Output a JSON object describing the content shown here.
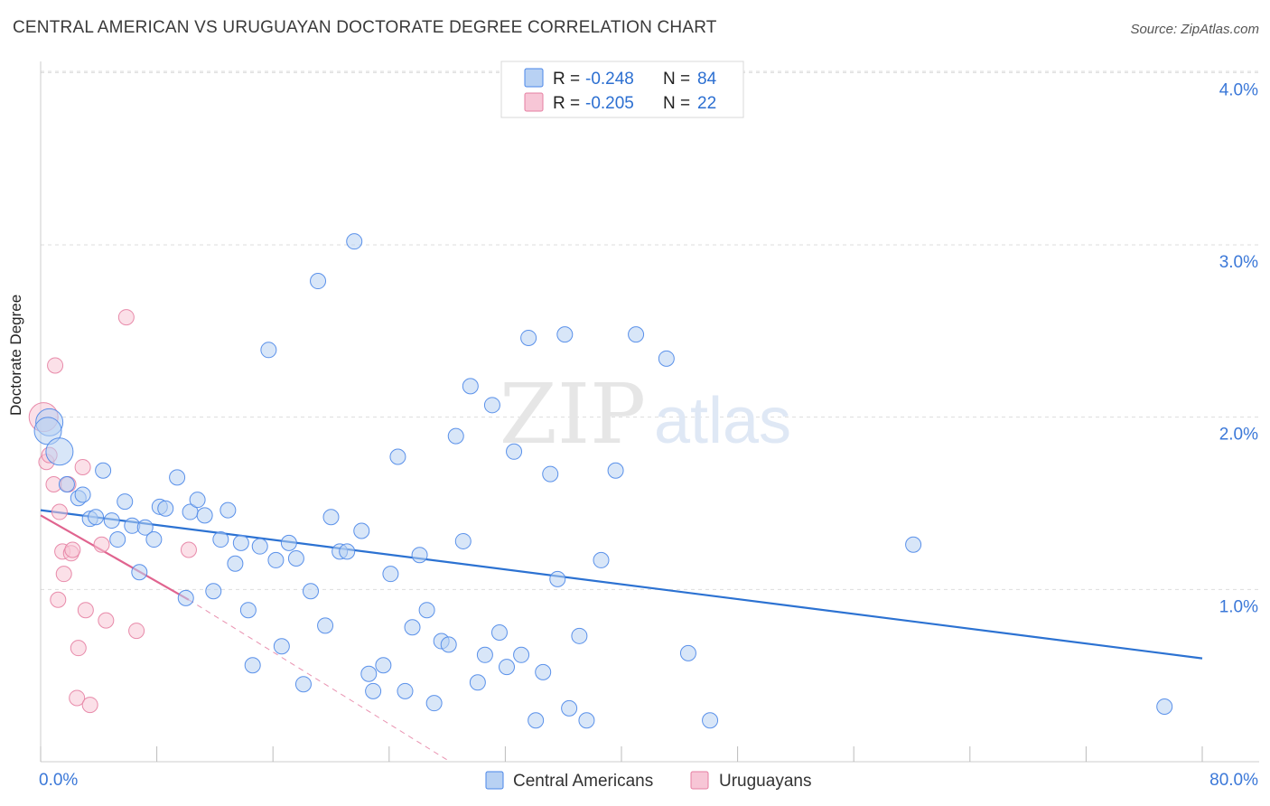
{
  "title": "CENTRAL AMERICAN VS URUGUAYAN DOCTORATE DEGREE CORRELATION CHART",
  "source": "Source: ZipAtlas.com",
  "watermark": {
    "zip": "ZIP",
    "atlas": "atlas"
  },
  "colors": {
    "blue": "#4a86e8",
    "blue_fill": "#b8d1f3",
    "blue_line": "#2c72d2",
    "pink": "#e67fa2",
    "pink_fill": "#f7c6d6",
    "pink_line": "#e0648f",
    "axis_text": "#3b78d8",
    "grid": "#dddddd"
  },
  "legend": {
    "rows": [
      {
        "r_label": "R = ",
        "r_value": "-0.248",
        "n_label": "N = ",
        "n_value": "84"
      },
      {
        "r_label": "R = ",
        "r_value": "-0.205",
        "n_label": "N = ",
        "n_value": "22"
      }
    ]
  },
  "chart_data": {
    "type": "scatter",
    "title": "CENTRAL AMERICAN VS URUGUAYAN DOCTORATE DEGREE CORRELATION CHART",
    "xlabel": "",
    "ylabel": "Doctorate Degree",
    "xlim": [
      0,
      80
    ],
    "ylim": [
      0,
      4.2
    ],
    "x_tick_labels": [
      "0.0%",
      "80.0%"
    ],
    "y_ticks": [
      {
        "value": 1.0,
        "label": "1.0%"
      },
      {
        "value": 2.0,
        "label": "2.0%"
      },
      {
        "value": 3.0,
        "label": "3.0%"
      },
      {
        "value": 4.0,
        "label": "4.0%"
      }
    ],
    "series": [
      {
        "name": "Central Americans",
        "r": -0.248,
        "n": 84,
        "trend": {
          "x": [
            0,
            80
          ],
          "y": [
            1.46,
            0.6
          ],
          "dashed_extension": false
        },
        "points": [
          [
            0.6,
            1.97,
            "l"
          ],
          [
            0.5,
            1.92,
            "l"
          ],
          [
            1.3,
            1.8,
            "l"
          ],
          [
            1.8,
            1.61
          ],
          [
            2.6,
            1.53
          ],
          [
            2.9,
            1.55
          ],
          [
            3.4,
            1.41
          ],
          [
            3.8,
            1.42
          ],
          [
            4.3,
            1.69
          ],
          [
            4.9,
            1.4
          ],
          [
            5.3,
            1.29
          ],
          [
            5.8,
            1.51
          ],
          [
            6.3,
            1.37
          ],
          [
            6.8,
            1.1
          ],
          [
            7.2,
            1.36
          ],
          [
            7.8,
            1.29
          ],
          [
            8.2,
            1.48
          ],
          [
            8.6,
            1.47
          ],
          [
            9.4,
            1.65
          ],
          [
            10.0,
            0.95
          ],
          [
            10.3,
            1.45
          ],
          [
            10.8,
            1.52
          ],
          [
            11.3,
            1.43
          ],
          [
            11.9,
            0.99
          ],
          [
            12.4,
            1.29
          ],
          [
            12.9,
            1.46
          ],
          [
            13.4,
            1.15
          ],
          [
            13.8,
            1.27
          ],
          [
            14.3,
            0.88
          ],
          [
            14.6,
            0.56
          ],
          [
            15.1,
            1.25
          ],
          [
            15.7,
            2.39
          ],
          [
            16.2,
            1.17
          ],
          [
            16.6,
            0.67
          ],
          [
            17.1,
            1.27
          ],
          [
            17.6,
            1.18
          ],
          [
            18.1,
            0.45
          ],
          [
            18.6,
            0.99
          ],
          [
            19.1,
            2.79
          ],
          [
            19.6,
            0.79
          ],
          [
            20.0,
            1.42
          ],
          [
            20.6,
            1.22
          ],
          [
            21.1,
            1.22
          ],
          [
            21.6,
            3.02
          ],
          [
            22.1,
            1.34
          ],
          [
            22.6,
            0.51
          ],
          [
            22.9,
            0.41
          ],
          [
            23.6,
            0.56
          ],
          [
            24.1,
            1.09
          ],
          [
            24.6,
            1.77
          ],
          [
            25.1,
            0.41
          ],
          [
            25.6,
            0.78
          ],
          [
            26.1,
            1.2
          ],
          [
            26.6,
            0.88
          ],
          [
            27.1,
            0.34
          ],
          [
            27.6,
            0.7
          ],
          [
            28.1,
            0.68
          ],
          [
            28.6,
            1.89
          ],
          [
            29.1,
            1.28
          ],
          [
            29.6,
            2.18
          ],
          [
            30.1,
            0.46
          ],
          [
            30.6,
            0.62
          ],
          [
            31.1,
            2.07
          ],
          [
            31.6,
            0.75
          ],
          [
            32.1,
            0.55
          ],
          [
            32.6,
            1.8
          ],
          [
            33.1,
            0.62
          ],
          [
            33.6,
            2.46
          ],
          [
            34.1,
            0.24
          ],
          [
            34.6,
            0.52
          ],
          [
            35.1,
            1.67
          ],
          [
            35.6,
            1.06
          ],
          [
            36.1,
            2.48
          ],
          [
            36.4,
            0.31
          ],
          [
            37.1,
            0.73
          ],
          [
            37.6,
            0.24
          ],
          [
            38.6,
            1.17
          ],
          [
            39.6,
            1.69
          ],
          [
            41.0,
            2.48
          ],
          [
            43.1,
            2.34
          ],
          [
            44.6,
            0.63
          ],
          [
            46.1,
            0.24
          ],
          [
            60.1,
            1.26
          ],
          [
            77.4,
            0.32
          ]
        ]
      },
      {
        "name": "Uruguayans",
        "r": -0.205,
        "n": 22,
        "trend": {
          "x": [
            0,
            10.2
          ],
          "y": [
            1.43,
            0.94
          ],
          "dash_to": [
            28.2,
            0.0
          ]
        },
        "points": [
          [
            0.2,
            2.0,
            "l"
          ],
          [
            0.4,
            1.74
          ],
          [
            0.6,
            1.78
          ],
          [
            0.9,
            1.61
          ],
          [
            1.0,
            2.3
          ],
          [
            1.2,
            0.94
          ],
          [
            1.3,
            1.45
          ],
          [
            1.5,
            1.22
          ],
          [
            1.6,
            1.09
          ],
          [
            1.9,
            1.61
          ],
          [
            2.1,
            1.21
          ],
          [
            2.2,
            1.23
          ],
          [
            2.5,
            0.37
          ],
          [
            2.6,
            0.66
          ],
          [
            2.9,
            1.71
          ],
          [
            3.1,
            0.88
          ],
          [
            3.4,
            0.33
          ],
          [
            4.2,
            1.26
          ],
          [
            4.5,
            0.82
          ],
          [
            5.9,
            2.58
          ],
          [
            6.6,
            0.76
          ],
          [
            10.2,
            1.23
          ]
        ]
      }
    ]
  }
}
